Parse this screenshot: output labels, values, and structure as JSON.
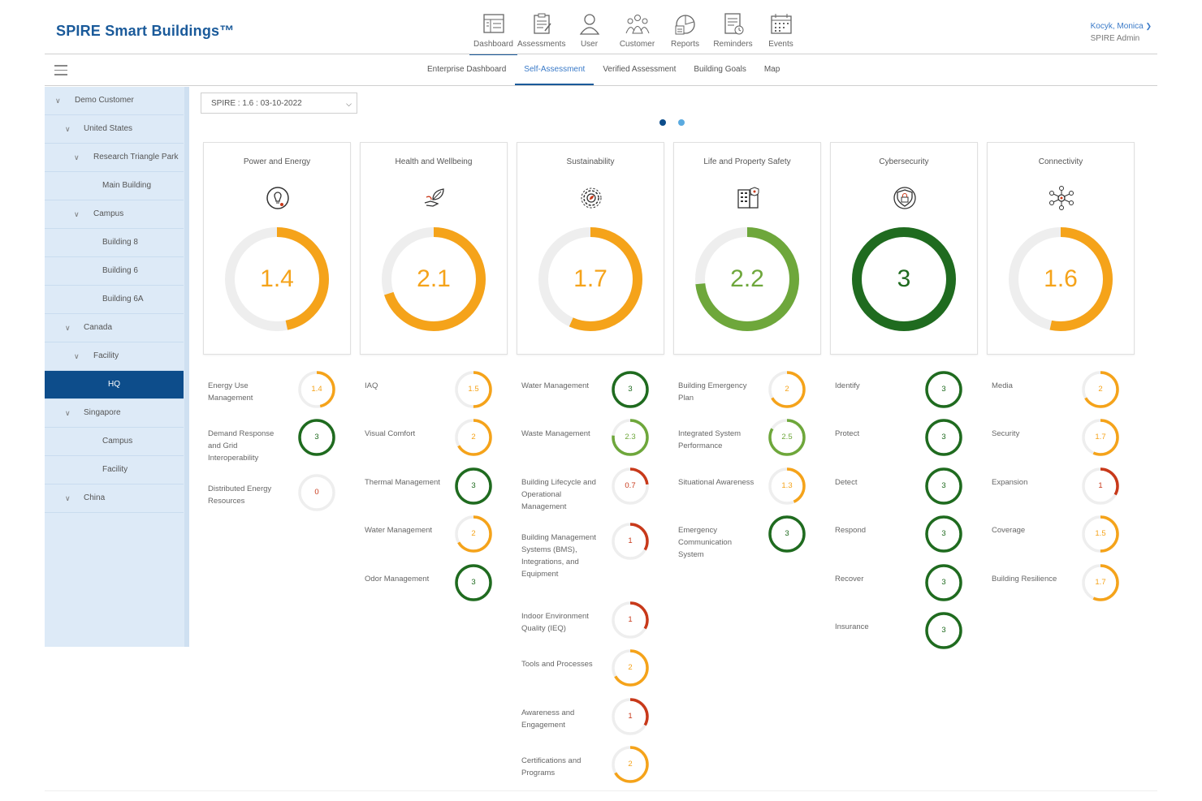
{
  "app": {
    "title": "SPIRE Smart Buildings™"
  },
  "topnav": [
    {
      "label": "Dashboard",
      "icon": "dashboard-icon"
    },
    {
      "label": "Assessments",
      "icon": "assessments-icon"
    },
    {
      "label": "User",
      "icon": "user-icon"
    },
    {
      "label": "Customer",
      "icon": "customer-icon"
    },
    {
      "label": "Reports",
      "icon": "reports-icon"
    },
    {
      "label": "Reminders",
      "icon": "reminders-icon"
    },
    {
      "label": "Events",
      "icon": "events-icon"
    }
  ],
  "user": {
    "name": "Kocyk, Monica",
    "role": "SPIRE Admin"
  },
  "subtabs": [
    {
      "label": "Enterprise Dashboard",
      "active": false
    },
    {
      "label": "Self-Assessment",
      "active": true
    },
    {
      "label": "Verified Assessment",
      "active": false
    },
    {
      "label": "Building Goals",
      "active": false
    },
    {
      "label": "Map",
      "active": false
    }
  ],
  "tree": [
    {
      "label": "Demo Customer",
      "level": 0,
      "chevron": true
    },
    {
      "label": "United States",
      "level": 1,
      "chevron": true
    },
    {
      "label": "Research Triangle Park",
      "level": 2,
      "chevron": true
    },
    {
      "label": "Main Building",
      "level": 3,
      "chevron": false
    },
    {
      "label": "Campus",
      "level": 2,
      "chevron": true
    },
    {
      "label": "Building 8",
      "level": 3,
      "chevron": false
    },
    {
      "label": "Building 6",
      "level": 3,
      "chevron": false
    },
    {
      "label": "Building 6A",
      "level": 3,
      "chevron": false
    },
    {
      "label": "Canada",
      "level": 1,
      "chevron": true
    },
    {
      "label": "Facility",
      "level": 2,
      "chevron": true
    },
    {
      "label": "HQ",
      "level": 3,
      "chevron": false,
      "selected": true
    },
    {
      "label": "Singapore",
      "level": 1,
      "chevron": true
    },
    {
      "label": "Campus",
      "level": 3,
      "chevron": false
    },
    {
      "label": "Facility",
      "level": 3,
      "chevron": false
    },
    {
      "label": "China",
      "level": 1,
      "chevron": true
    }
  ],
  "assessment_select": {
    "value": "SPIRE : 1.6 : 03-10-2022"
  },
  "carousel": {
    "active_dot_color": "#0d4d8b",
    "inactive_dot_color": "#5aaae0"
  },
  "colors": {
    "orange": "#f5a31a",
    "green_light": "#6ea73b",
    "green_dark": "#1f6b1f",
    "red": "#c8391a",
    "track": "#eeeeee",
    "brand": "#1a5a9a"
  },
  "categories": [
    {
      "title": "Power and Energy",
      "icon": "lightbulb-icon",
      "score": "1.4",
      "value": 1.4,
      "color": "#f5a31a",
      "subs": [
        {
          "label": "Energy Use Management",
          "score": "1.4",
          "value": 1.4,
          "color": "#f5a31a"
        },
        {
          "label": "Demand Response and Grid Interoperability",
          "score": "3",
          "value": 3,
          "color": "#1f6b1f"
        },
        {
          "label": "Distributed Energy Resources",
          "score": "0",
          "value": 0,
          "color": "#c8391a"
        }
      ]
    },
    {
      "title": "Health and Wellbeing",
      "icon": "leaf-hand-icon",
      "score": "2.1",
      "value": 2.1,
      "color": "#f5a31a",
      "subs": [
        {
          "label": "IAQ",
          "score": "1.5",
          "value": 1.5,
          "color": "#f5a31a"
        },
        {
          "label": "Visual Comfort",
          "score": "2",
          "value": 2,
          "color": "#f5a31a"
        },
        {
          "label": "Thermal Management",
          "score": "3",
          "value": 3,
          "color": "#1f6b1f"
        },
        {
          "label": "Water Management",
          "score": "2",
          "value": 2,
          "color": "#f5a31a"
        },
        {
          "label": "Odor Management",
          "score": "3",
          "value": 3,
          "color": "#1f6b1f"
        }
      ]
    },
    {
      "title": "Sustainability",
      "icon": "gear-leaf-icon",
      "score": "1.7",
      "value": 1.7,
      "color": "#f5a31a",
      "subs": [
        {
          "label": "Water Management",
          "score": "3",
          "value": 3,
          "color": "#1f6b1f"
        },
        {
          "label": "Waste Management",
          "score": "2.3",
          "value": 2.3,
          "color": "#6ea73b"
        },
        {
          "label": "Building Lifecycle and Operational Management",
          "score": "0.7",
          "value": 0.7,
          "color": "#c8391a"
        },
        {
          "label": "Building Management Systems (BMS), Integrations, and Equipment",
          "score": "1",
          "value": 1,
          "color": "#c8391a"
        },
        {
          "label": "Indoor Environment Quality (IEQ)",
          "score": "1",
          "value": 1,
          "color": "#c8391a"
        },
        {
          "label": "Tools and Processes",
          "score": "2",
          "value": 2,
          "color": "#f5a31a"
        },
        {
          "label": "Awareness and Engagement",
          "score": "1",
          "value": 1,
          "color": "#c8391a"
        },
        {
          "label": "Certifications and Programs",
          "score": "2",
          "value": 2,
          "color": "#f5a31a"
        }
      ]
    },
    {
      "title": "Life and Property Safety",
      "icon": "building-shield-icon",
      "score": "2.2",
      "value": 2.2,
      "color": "#6ea73b",
      "subs": [
        {
          "label": "Building Emergency Plan",
          "score": "2",
          "value": 2,
          "color": "#f5a31a"
        },
        {
          "label": "Integrated System Performance",
          "score": "2.5",
          "value": 2.5,
          "color": "#6ea73b"
        },
        {
          "label": "Situational Awareness",
          "score": "1.3",
          "value": 1.3,
          "color": "#f5a31a"
        },
        {
          "label": "Emergency Communication System",
          "score": "3",
          "value": 3,
          "color": "#1f6b1f"
        }
      ]
    },
    {
      "title": "Cybersecurity",
      "icon": "shield-lock-icon",
      "score": "3",
      "value": 3,
      "color": "#1f6b1f",
      "subs": [
        {
          "label": "Identify",
          "score": "3",
          "value": 3,
          "color": "#1f6b1f"
        },
        {
          "label": "Protect",
          "score": "3",
          "value": 3,
          "color": "#1f6b1f"
        },
        {
          "label": "Detect",
          "score": "3",
          "value": 3,
          "color": "#1f6b1f"
        },
        {
          "label": "Respond",
          "score": "3",
          "value": 3,
          "color": "#1f6b1f"
        },
        {
          "label": "Recover",
          "score": "3",
          "value": 3,
          "color": "#1f6b1f"
        },
        {
          "label": "Insurance",
          "score": "3",
          "value": 3,
          "color": "#1f6b1f"
        }
      ]
    },
    {
      "title": "Connectivity",
      "icon": "network-icon",
      "score": "1.6",
      "value": 1.6,
      "color": "#f5a31a",
      "subs": [
        {
          "label": "Media",
          "score": "2",
          "value": 2,
          "color": "#f5a31a"
        },
        {
          "label": "Security",
          "score": "1.7",
          "value": 1.7,
          "color": "#f5a31a"
        },
        {
          "label": "Expansion",
          "score": "1",
          "value": 1,
          "color": "#c8391a"
        },
        {
          "label": "Coverage",
          "score": "1.5",
          "value": 1.5,
          "color": "#f5a31a"
        },
        {
          "label": "Building Resilience",
          "score": "1.7",
          "value": 1.7,
          "color": "#f5a31a"
        }
      ]
    }
  ]
}
